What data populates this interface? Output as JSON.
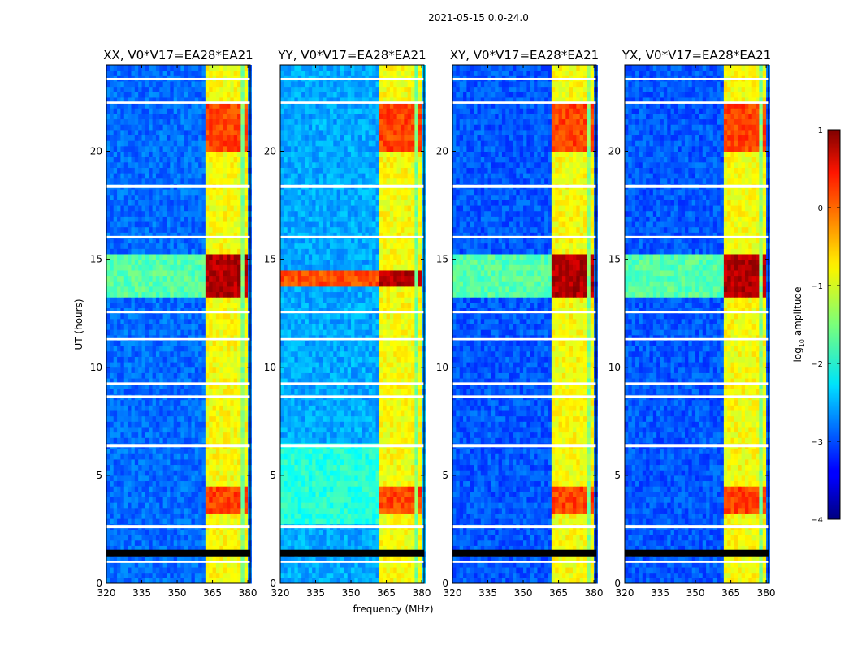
{
  "figure": {
    "suptitle": "2021-05-15 0.0-24.0",
    "xlabel": "frequency (MHz)",
    "ylabel": "UT (hours)"
  },
  "chart_data": {
    "type": "heatmap",
    "title": "2021-05-15 0.0-24.0",
    "xlabel": "frequency (MHz)",
    "ylabel": "UT (hours)",
    "xlim": [
      320,
      381
    ],
    "ylim": [
      0,
      24
    ],
    "xticks": [
      320,
      335,
      350,
      365,
      380
    ],
    "yticks": [
      0,
      5,
      10,
      15,
      20
    ],
    "colorbar": {
      "label": "log10 amplitude",
      "label_prefix": "log",
      "label_sub": "10",
      "label_suffix": " amplitude",
      "range": [
        -4,
        1
      ],
      "ticks": [
        {
          "value": 1,
          "label": "1"
        },
        {
          "value": 0,
          "label": "0"
        },
        {
          "value": -1,
          "label": "−1"
        },
        {
          "value": -2,
          "label": "−2"
        },
        {
          "value": -3,
          "label": "−3"
        },
        {
          "value": -4,
          "label": "−4"
        }
      ],
      "colormap": "jet"
    },
    "panels": [
      {
        "title": "XX, V0*V17=EA28*EA21",
        "polarization": "XX",
        "background": -2.85,
        "lowband": -2.85,
        "strong_band": [
          13.1,
          15.1
        ]
      },
      {
        "title": "YY, V0*V17=EA28*EA21",
        "polarization": "YY",
        "background": -2.55,
        "lowband": -1.95,
        "strong_band": [
          13.7,
          14.5
        ]
      },
      {
        "title": "XY, V0*V17=EA28*EA21",
        "polarization": "XY",
        "background": -2.95,
        "lowband": -2.95,
        "strong_band": [
          13.1,
          15.1
        ]
      },
      {
        "title": "YX, V0*V17=EA28*EA21",
        "polarization": "YX",
        "background": -2.95,
        "lowband": -2.95,
        "strong_band": [
          13.1,
          15.1
        ]
      }
    ],
    "rfi_band_mhz": [
      362,
      380
    ],
    "flagged_hours": [
      [
        1.25,
        1.55
      ],
      [
        0.95,
        1.02
      ],
      [
        2.55,
        2.7
      ],
      [
        6.3,
        6.45
      ],
      [
        8.6,
        8.7
      ],
      [
        9.2,
        9.3
      ],
      [
        18.3,
        18.45
      ],
      [
        11.25,
        11.35
      ],
      [
        12.5,
        12.62
      ],
      [
        16.0,
        16.08
      ],
      [
        22.2,
        22.3
      ],
      [
        23.3,
        23.4
      ]
    ]
  }
}
